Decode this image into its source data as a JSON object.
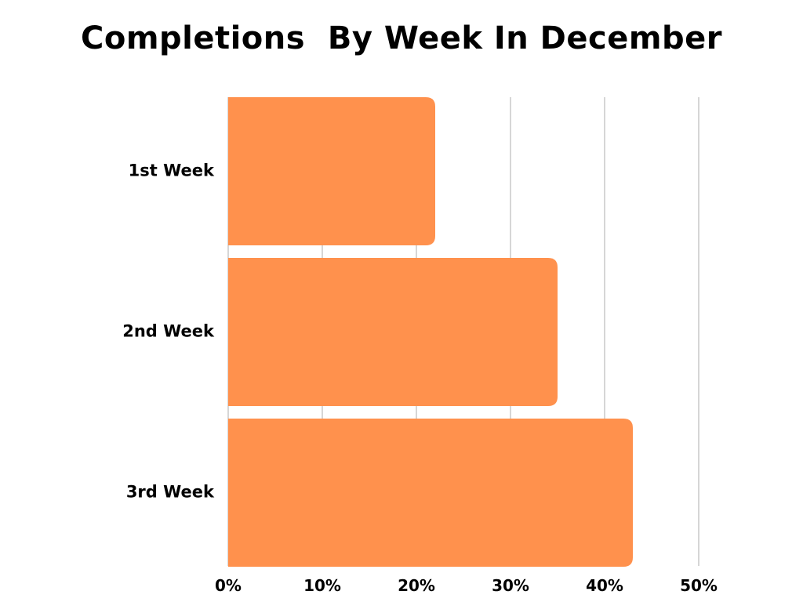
{
  "chart_data": {
    "type": "bar",
    "orientation": "horizontal",
    "title": "Completions  By Week In December",
    "categories": [
      "1st Week",
      "2nd Week",
      "3rd Week"
    ],
    "values": [
      22,
      35,
      43
    ],
    "value_unit": "%",
    "xlim": [
      0,
      50
    ],
    "xticks": [
      0,
      10,
      20,
      30,
      40,
      50
    ],
    "xtick_labels": [
      "0%",
      "10%",
      "20%",
      "30%",
      "40%",
      "50%"
    ],
    "xlabel": "",
    "ylabel": "",
    "grid": "vertical",
    "legend": "none",
    "bar_color": "#FF914D",
    "grid_color": "#c8c8c8",
    "text_color": "#000000"
  }
}
